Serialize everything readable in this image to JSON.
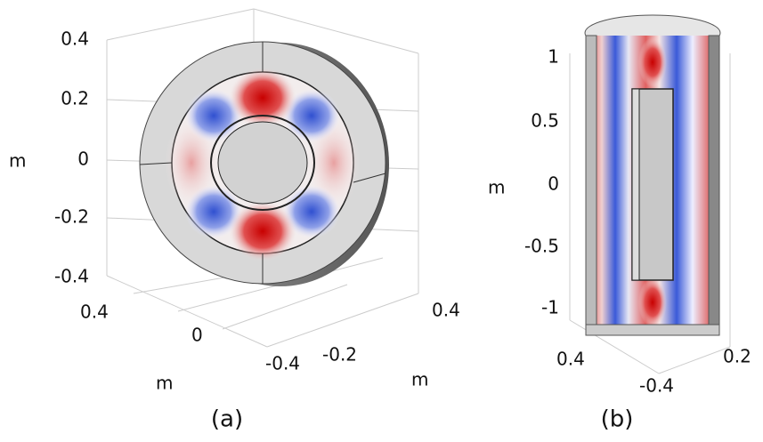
{
  "panels": [
    {
      "caption": "(a)",
      "z_axis": {
        "label": "m",
        "ticks": [
          "0.4",
          "0.2",
          "0",
          "-0.2",
          "-0.4"
        ]
      },
      "x_axis": {
        "label": "m",
        "ticks": [
          "0.4",
          "0",
          "-0.4"
        ]
      },
      "y_axis": {
        "label": "m",
        "ticks": [
          "0.4",
          "-0.2"
        ]
      }
    },
    {
      "caption": "(b)",
      "z_axis": {
        "label": "m",
        "ticks": [
          "1",
          "0.5",
          "0",
          "-0.5",
          "-1"
        ]
      },
      "x_axis": {
        "ticks": [
          "0.4",
          "-0.4"
        ]
      },
      "y_axis": {
        "ticks": [
          "0.2"
        ]
      }
    }
  ]
}
